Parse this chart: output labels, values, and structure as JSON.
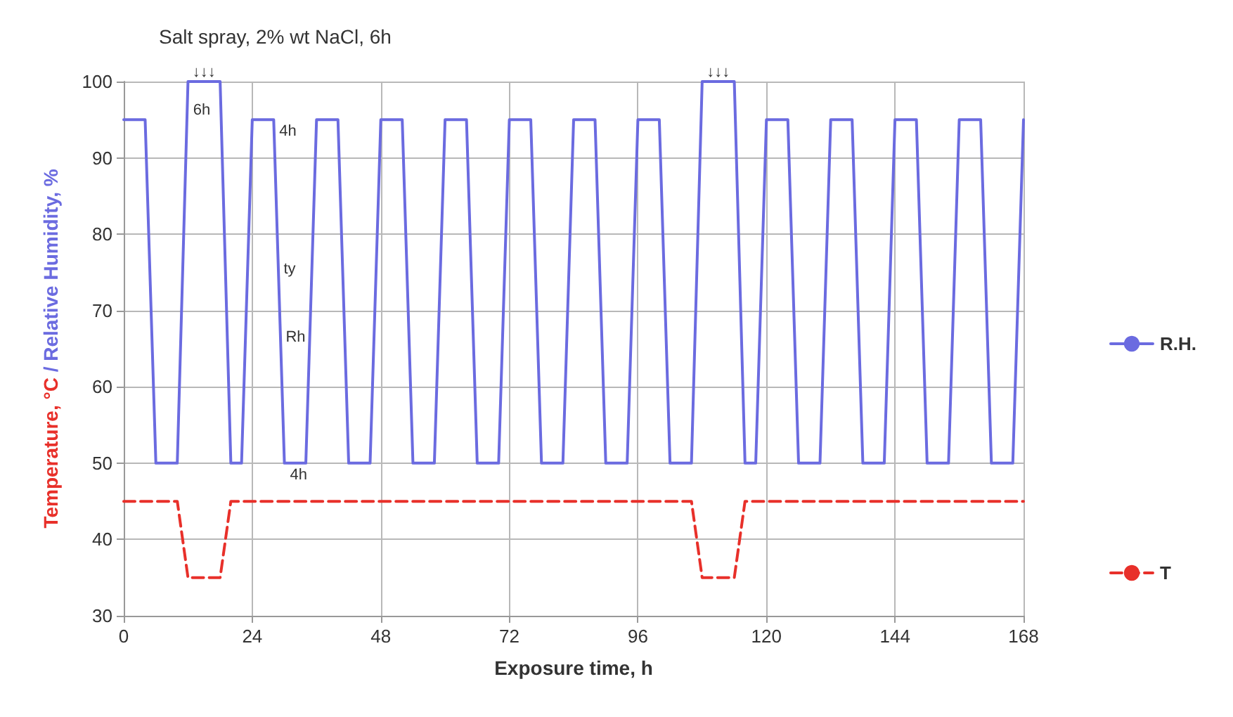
{
  "chart_data": {
    "type": "line",
    "title": "Salt spray, 2% wt NaCl, 6h",
    "xlabel": "Exposure time, h",
    "ylabel": "Temperature, °C / Relative Humidity, %",
    "xlim": [
      0,
      168
    ],
    "xticks": [
      0,
      24,
      48,
      72,
      96,
      120,
      144,
      168
    ],
    "ylim": [
      30,
      100
    ],
    "yticks": [
      30,
      40,
      50,
      60,
      70,
      80,
      90,
      100
    ],
    "grid": true,
    "legend": "right",
    "marker": "none",
    "series": [
      {
        "name": "R.H.",
        "color": "#6b6be0",
        "line_style": "solid",
        "x": [
          0,
          4,
          6,
          10,
          12,
          18,
          20,
          22,
          24,
          28,
          30,
          34,
          36,
          40,
          42,
          46,
          48,
          52,
          54,
          58,
          60,
          64,
          66,
          70,
          72,
          76,
          78,
          82,
          84,
          88,
          90,
          94,
          96,
          100,
          102,
          106,
          108,
          114,
          116,
          118,
          120,
          124,
          126,
          130,
          132,
          136,
          138,
          142,
          144,
          148,
          150,
          154,
          156,
          160,
          162,
          166,
          168
        ],
        "values": [
          95,
          95,
          50,
          50,
          100,
          100,
          50,
          50,
          95,
          95,
          50,
          50,
          95,
          95,
          50,
          50,
          95,
          95,
          50,
          50,
          95,
          95,
          50,
          50,
          95,
          95,
          50,
          50,
          95,
          95,
          50,
          50,
          95,
          95,
          50,
          50,
          100,
          100,
          50,
          50,
          95,
          95,
          50,
          50,
          95,
          95,
          50,
          50,
          95,
          95,
          50,
          50,
          95,
          95,
          50,
          50,
          95
        ]
      },
      {
        "name": "T",
        "color": "#e8302a",
        "line_style": "dashed",
        "x": [
          0,
          10,
          12,
          18,
          20,
          106,
          108,
          114,
          116,
          168
        ],
        "values": [
          45,
          45,
          35,
          35,
          45,
          45,
          35,
          35,
          45,
          45
        ]
      }
    ],
    "annotations": [
      {
        "text": "↓↓↓",
        "x": 15,
        "y": 100
      },
      {
        "text": "6h",
        "x": 11.9,
        "y": 97.75
      },
      {
        "text": "4h",
        "x": 28,
        "y": 95
      },
      {
        "text": "4h",
        "x": 30,
        "y": 50
      },
      {
        "text": "ty",
        "x": 28.8,
        "y": 77
      },
      {
        "text": "Rh",
        "x": 29.2,
        "y": 68
      },
      {
        "text": "↓↓↓",
        "x": 111,
        "y": 100
      }
    ]
  }
}
